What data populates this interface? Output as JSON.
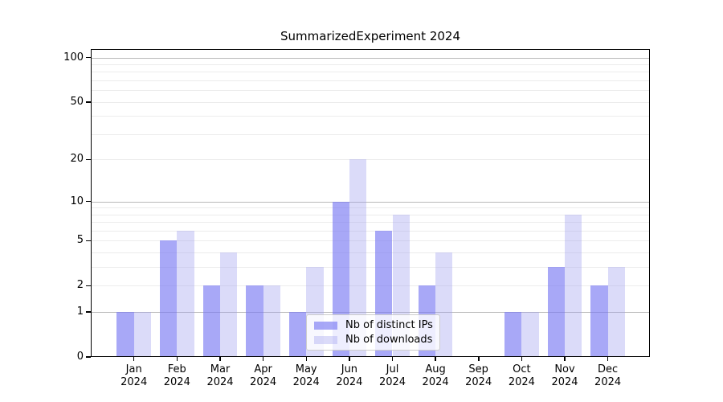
{
  "chart_data": {
    "type": "bar",
    "title": "SummarizedExperiment 2024",
    "categories": [
      "Jan 2024",
      "Feb 2024",
      "Mar 2024",
      "Apr 2024",
      "May 2024",
      "Jun 2024",
      "Jul 2024",
      "Aug 2024",
      "Sep 2024",
      "Oct 2024",
      "Nov 2024",
      "Dec 2024"
    ],
    "x_months": [
      "Jan",
      "Feb",
      "Mar",
      "Apr",
      "May",
      "Jun",
      "Jul",
      "Aug",
      "Sep",
      "Oct",
      "Nov",
      "Dec"
    ],
    "x_year": "2024",
    "series": [
      {
        "name": "Nb of distinct IPs",
        "color": "rgba(122,122,243,0.65)",
        "values": [
          1,
          5,
          2,
          2,
          1,
          10,
          6,
          2,
          0,
          1,
          3,
          2
        ]
      },
      {
        "name": "Nb of downloads",
        "color": "rgba(160,160,238,0.38)",
        "values": [
          1,
          6,
          4,
          2,
          3,
          20,
          8,
          4,
          0,
          1,
          8,
          3
        ]
      }
    ],
    "y_axis": {
      "scale": "log1p",
      "ylim": [
        0,
        114
      ],
      "tick_values": [
        0,
        1,
        2,
        5,
        10,
        20,
        50,
        100
      ],
      "tick_labels": [
        "0",
        "1",
        "2",
        "5",
        "10",
        "20",
        "50",
        "100"
      ]
    },
    "grid": {
      "major_values": [
        1,
        10,
        100
      ],
      "minor_values": [
        2,
        3,
        4,
        5,
        6,
        7,
        8,
        9,
        20,
        30,
        40,
        50,
        60,
        70,
        80,
        90
      ],
      "major_color": "#b9b9b9",
      "minor_color": "#ececec"
    },
    "legend_position": "lower center"
  }
}
